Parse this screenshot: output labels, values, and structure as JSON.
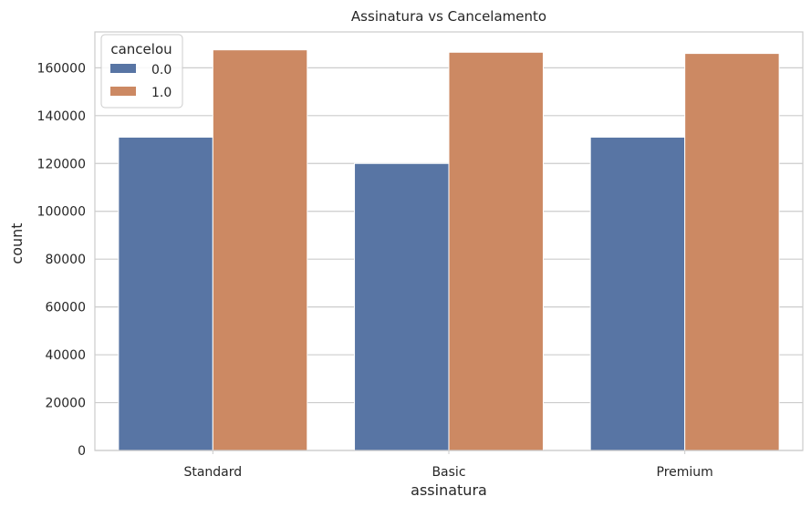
{
  "chart_data": {
    "type": "bar",
    "title": "Assinatura vs Cancelamento",
    "xlabel": "assinatura",
    "ylabel": "count",
    "categories": [
      "Standard",
      "Basic",
      "Premium"
    ],
    "series": [
      {
        "name": "0.0",
        "color": "#5875a4",
        "values": [
          131000,
          120000,
          131000
        ]
      },
      {
        "name": "1.0",
        "color": "#cc8963",
        "values": [
          167500,
          166500,
          166000
        ]
      }
    ],
    "ylim": [
      0,
      175000
    ],
    "yticks": [
      "0",
      "20000",
      "40000",
      "60000",
      "80000",
      "100000",
      "120000",
      "140000",
      "160000"
    ],
    "grid": true,
    "legend": {
      "title": "cancelou",
      "placement": "top-left"
    }
  }
}
